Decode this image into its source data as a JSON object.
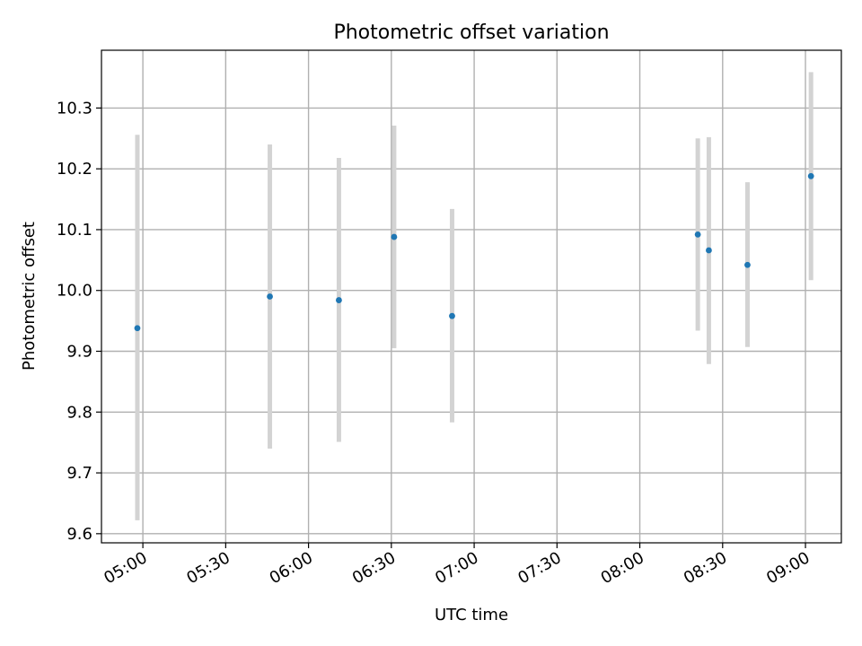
{
  "chart_data": {
    "type": "scatter",
    "title": "Photometric offset variation",
    "xlabel": "UTC time",
    "ylabel": "Photometric offset",
    "x_ticks": [
      "05:00",
      "05:30",
      "06:00",
      "06:30",
      "07:00",
      "07:30",
      "08:00",
      "08:30",
      "09:00"
    ],
    "y_ticks": [
      "9.6",
      "9.7",
      "9.8",
      "9.9",
      "10.0",
      "10.1",
      "10.2",
      "10.3"
    ],
    "xlim": [
      "04:45",
      "09:13"
    ],
    "ylim": [
      9.585,
      10.395
    ],
    "grid": true,
    "error_bars": true,
    "series": [
      {
        "points": [
          {
            "x": "04:58",
            "y": 9.938,
            "err_low": 9.622,
            "err_high": 10.256
          },
          {
            "x": "05:46",
            "y": 9.99,
            "err_low": 9.74,
            "err_high": 10.24
          },
          {
            "x": "06:11",
            "y": 9.984,
            "err_low": 9.751,
            "err_high": 10.218
          },
          {
            "x": "06:31",
            "y": 10.088,
            "err_low": 9.905,
            "err_high": 10.271
          },
          {
            "x": "06:52",
            "y": 9.958,
            "err_low": 9.783,
            "err_high": 10.134
          },
          {
            "x": "08:21",
            "y": 10.092,
            "err_low": 9.934,
            "err_high": 10.25
          },
          {
            "x": "08:25",
            "y": 10.066,
            "err_low": 9.879,
            "err_high": 10.252
          },
          {
            "x": "08:39",
            "y": 10.042,
            "err_low": 9.907,
            "err_high": 10.178
          },
          {
            "x": "09:02",
            "y": 10.188,
            "err_low": 10.017,
            "err_high": 10.359
          }
        ]
      }
    ]
  },
  "colors": {
    "point": "#1f77b4",
    "error_bar": "#d3d3d3",
    "grid": "#b0b0b0",
    "axes": "#000000"
  }
}
